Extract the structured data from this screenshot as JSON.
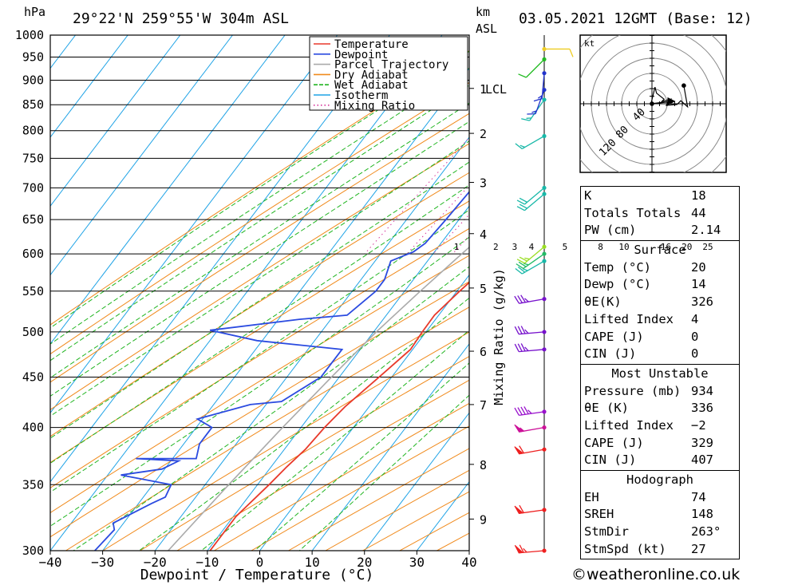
{
  "header": {
    "location": "29°22'N  259°55'W  304m  ASL",
    "datetime": "03.05.2021  12GMT  (Base: 12)",
    "pressure_unit": "hPa",
    "km_unit": "km",
    "km_unit2": "ASL"
  },
  "legend": [
    {
      "label": "Temperature",
      "color": "#e8392b"
    },
    {
      "label": "Dewpoint",
      "color": "#2b4be0"
    },
    {
      "label": "Parcel Trajectory",
      "color": "#aaaaaa"
    },
    {
      "label": "Dry Adiabat",
      "color": "#f08a1c"
    },
    {
      "label": "Wet Adiabat",
      "color": "#21b521"
    },
    {
      "label": "Isotherm",
      "color": "#1fa3e6"
    },
    {
      "label": "Mixing Ratio",
      "color": "#d6339a"
    }
  ],
  "chart_data": {
    "type": "line",
    "xlabel": "Dewpoint / Temperature (°C)",
    "ylabel": "hPa",
    "xlim": [
      -40,
      40
    ],
    "ylim": [
      1000,
      300
    ],
    "x_ticks": [
      "−40",
      "−30",
      "−20",
      "−10",
      "0",
      "10",
      "20",
      "30",
      "40"
    ],
    "x_tick_values": [
      -40,
      -30,
      -20,
      -10,
      0,
      10,
      20,
      30,
      40
    ],
    "pressure_ticks": [
      300,
      350,
      400,
      450,
      500,
      550,
      600,
      650,
      700,
      750,
      800,
      850,
      900,
      950,
      1000
    ],
    "km_ticks": [
      {
        "label": "9",
        "p": 323
      },
      {
        "label": "8",
        "p": 367
      },
      {
        "label": "7",
        "p": 422
      },
      {
        "label": "6",
        "p": 478
      },
      {
        "label": "5",
        "p": 554
      },
      {
        "label": "4",
        "p": 629
      },
      {
        "label": "3",
        "p": 709
      },
      {
        "label": "2",
        "p": 795
      },
      {
        "label": "1",
        "p": 883
      }
    ],
    "lcl": {
      "label": "LCL",
      "p": 883
    },
    "mixing_ratio_title": "Mixing Ratio (g/kg)",
    "mixing_ratio_labels": [
      "1",
      "2",
      "3",
      "4",
      "5",
      "8",
      "10",
      "16",
      "20",
      "25"
    ],
    "mixing_ratio_label_x": [
      -5.5,
      2.0,
      5.6,
      8.8,
      15.2,
      22.0,
      26.5,
      34.5,
      38.5,
      42.5
    ],
    "series": [
      {
        "name": "Temperature",
        "color": "#e8392b",
        "points": [
          [
            -9.5,
            300
          ],
          [
            -9.5,
            325
          ],
          [
            -7.8,
            350
          ],
          [
            -7.0,
            365
          ],
          [
            -6.0,
            380
          ],
          [
            -5.5,
            400
          ],
          [
            -4.6,
            420
          ],
          [
            -2.4,
            450
          ],
          [
            -0.4,
            480
          ],
          [
            -0.7,
            500
          ],
          [
            -0.8,
            520
          ],
          [
            0.5,
            550
          ],
          [
            3.0,
            600
          ],
          [
            6.5,
            650
          ],
          [
            10.2,
            700
          ],
          [
            13.6,
            750
          ],
          [
            16.8,
            800
          ],
          [
            20.1,
            850
          ],
          [
            20.2,
            865
          ],
          [
            17.3,
            880
          ],
          [
            16.8,
            895
          ],
          [
            17.2,
            905
          ],
          [
            17.0,
            930
          ],
          [
            16.6,
            948
          ],
          [
            14.4,
            955
          ],
          [
            14.5,
            962
          ]
        ]
      },
      {
        "name": "Dewpoint",
        "color": "#2b4be0",
        "points": [
          [
            -31.5,
            300
          ],
          [
            -30.8,
            315
          ],
          [
            -32.0,
            320
          ],
          [
            -27.5,
            335
          ],
          [
            -25.8,
            340
          ],
          [
            -26.5,
            350
          ],
          [
            -37.5,
            358
          ],
          [
            -30.5,
            363
          ],
          [
            -28.5,
            370
          ],
          [
            -37.0,
            372
          ],
          [
            -25.5,
            372
          ],
          [
            -27.0,
            385
          ],
          [
            -27.0,
            400
          ],
          [
            -31.0,
            408
          ],
          [
            -23.0,
            422
          ],
          [
            -17.5,
            425
          ],
          [
            -13.5,
            450
          ],
          [
            -13.5,
            480
          ],
          [
            -31.0,
            490
          ],
          [
            -41.5,
            502
          ],
          [
            -26.0,
            515
          ],
          [
            -17.5,
            520
          ],
          [
            -15.5,
            550
          ],
          [
            -15.5,
            565
          ],
          [
            -17.0,
            590
          ],
          [
            -14.0,
            603
          ],
          [
            -13.0,
            615
          ],
          [
            -12.5,
            650
          ],
          [
            -12.0,
            700
          ],
          [
            -12.0,
            750
          ],
          [
            -11.5,
            800
          ],
          [
            -11.0,
            838
          ],
          [
            -9.5,
            865
          ],
          [
            -3.5,
            875
          ],
          [
            -3.0,
            893
          ],
          [
            -2.0,
            925
          ],
          [
            3.0,
            948
          ],
          [
            2.0,
            962
          ]
        ]
      },
      {
        "name": "Parcel Trajectory",
        "color": "#aaaaaa",
        "points": [
          [
            -17.5,
            300
          ],
          [
            -15.5,
            350
          ],
          [
            -13.5,
            400
          ],
          [
            -11.5,
            450
          ],
          [
            -9.5,
            500
          ],
          [
            -7.0,
            550
          ],
          [
            -4.5,
            600
          ],
          [
            -2.0,
            650
          ],
          [
            0.0,
            700
          ],
          [
            1.5,
            750
          ],
          [
            3.3,
            800
          ],
          [
            4.5,
            850
          ],
          [
            5.5,
            880
          ],
          [
            7.2,
            905
          ],
          [
            10.0,
            930
          ],
          [
            14.0,
            960
          ]
        ]
      }
    ],
    "wind_barbs": [
      {
        "p": 300,
        "dir": 265,
        "kt": 65,
        "color": "#ee2020"
      },
      {
        "p": 330,
        "dir": 262,
        "kt": 60,
        "color": "#ee2020"
      },
      {
        "p": 380,
        "dir": 260,
        "kt": 60,
        "color": "#ee2020"
      },
      {
        "p": 400,
        "dir": 260,
        "kt": 55,
        "color": "#cc1199"
      },
      {
        "p": 415,
        "dir": 262,
        "kt": 45,
        "color": "#9911cc"
      },
      {
        "p": 480,
        "dir": 265,
        "kt": 35,
        "color": "#7711cc"
      },
      {
        "p": 500,
        "dir": 265,
        "kt": 35,
        "color": "#7711cc"
      },
      {
        "p": 540,
        "dir": 260,
        "kt": 35,
        "color": "#7711cc"
      },
      {
        "p": 590,
        "dir": 240,
        "kt": 25,
        "color": "#18b8a8"
      },
      {
        "p": 600,
        "dir": 235,
        "kt": 25,
        "color": "#22bb66"
      },
      {
        "p": 610,
        "dir": 230,
        "kt": 25,
        "color": "#99dd22"
      },
      {
        "p": 690,
        "dir": 230,
        "kt": 20,
        "color": "#18b8a8"
      },
      {
        "p": 700,
        "dir": 230,
        "kt": 20,
        "color": "#18b8a8"
      },
      {
        "p": 790,
        "dir": 240,
        "kt": 15,
        "color": "#18b8a8"
      },
      {
        "p": 860,
        "dir": 215,
        "kt": 15,
        "color": "#18b8a8"
      },
      {
        "p": 880,
        "dir": 200,
        "kt": 15,
        "color": "#2233cc"
      },
      {
        "p": 915,
        "dir": 185,
        "kt": 15,
        "color": "#2233cc"
      },
      {
        "p": 945,
        "dir": 225,
        "kt": 10,
        "color": "#22bb22"
      },
      {
        "p": 968,
        "dir": 90,
        "kt": 10,
        "color": "#eecc22"
      }
    ]
  },
  "hodograph": {
    "unit_label": "kt",
    "ring_labels": [
      "40",
      "80",
      "120"
    ],
    "trace": [
      [
        -1,
        1
      ],
      [
        4,
        22
      ],
      [
        6,
        14
      ],
      [
        16,
        6
      ],
      [
        13,
        3
      ],
      [
        25,
        6
      ],
      [
        19,
        -2
      ],
      [
        33,
        -1
      ],
      [
        38,
        4
      ],
      [
        47,
        -4
      ],
      [
        42,
        24
      ]
    ],
    "storm_motion": {
      "dir": 263,
      "kt": 27
    }
  },
  "indices": {
    "general": [
      {
        "label": "K",
        "value": "18"
      },
      {
        "label": "Totals Totals",
        "value": "44"
      },
      {
        "label": "PW (cm)",
        "value": "2.14"
      }
    ],
    "surface": {
      "title": "Surface",
      "rows": [
        {
          "label": "Temp (°C)",
          "value": "20"
        },
        {
          "label": "Dewp (°C)",
          "value": "14"
        },
        {
          "label": "θE(K)",
          "value": "326"
        },
        {
          "label": "Lifted Index",
          "value": "4"
        },
        {
          "label": "CAPE (J)",
          "value": "0"
        },
        {
          "label": "CIN (J)",
          "value": "0"
        }
      ]
    },
    "most_unstable": {
      "title": "Most Unstable",
      "rows": [
        {
          "label": "Pressure (mb)",
          "value": "934"
        },
        {
          "label": "θE (K)",
          "value": "336"
        },
        {
          "label": "Lifted Index",
          "value": "−2"
        },
        {
          "label": "CAPE (J)",
          "value": "329"
        },
        {
          "label": "CIN (J)",
          "value": "407"
        }
      ]
    },
    "hodograph": {
      "title": "Hodograph",
      "rows": [
        {
          "label": "EH",
          "value": "74"
        },
        {
          "label": "SREH",
          "value": "148"
        },
        {
          "label": "StmDir",
          "value": "263°"
        },
        {
          "label": "StmSpd (kt)",
          "value": "27"
        }
      ]
    }
  },
  "credit": "©weatheronline.co.uk"
}
